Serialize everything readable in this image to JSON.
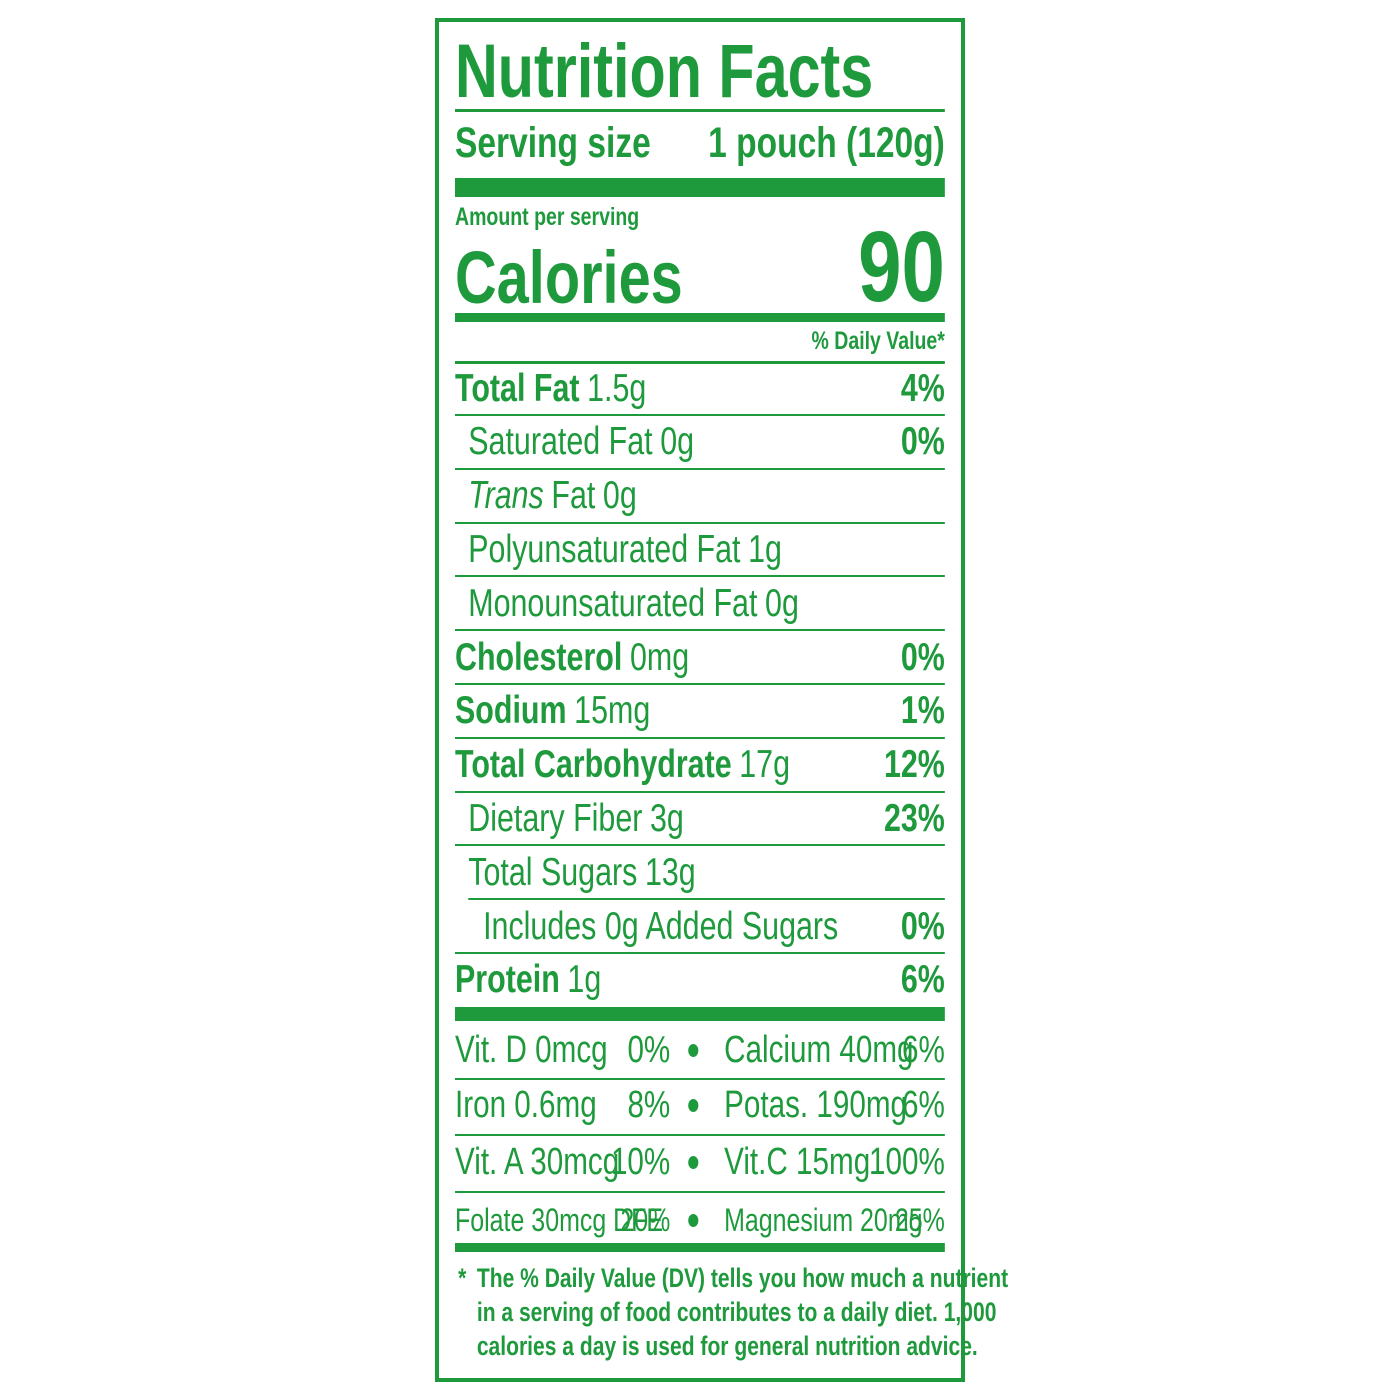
{
  "title": "Nutrition Facts",
  "serving": {
    "label": "Serving size",
    "value": "1 pouch (120g)"
  },
  "amount_per_serving": "Amount per serving",
  "calories": {
    "label": "Calories",
    "value": 90
  },
  "dv_header": "% Daily Value*",
  "nutrients": [
    {
      "name": "Total Fat",
      "amount": "1.5g",
      "dv": "4%",
      "indent": 0
    },
    {
      "name": "Saturated Fat",
      "amount": "0g",
      "dv": "0%",
      "indent": 1
    },
    {
      "italic": "Trans",
      "name": "Fat",
      "amount": "0g",
      "indent": 1
    },
    {
      "name": "Polyunsaturated Fat",
      "amount": "1g",
      "indent": 1
    },
    {
      "name": "Monounsaturated Fat",
      "amount": "0g",
      "indent": 1
    },
    {
      "name": "Cholesterol",
      "amount": "0mg",
      "dv": "0%",
      "indent": 0
    },
    {
      "name": "Sodium",
      "amount": "15mg",
      "dv": "1%",
      "indent": 0
    },
    {
      "name": "Total Carbohydrate",
      "amount": "17g",
      "dv": "12%",
      "indent": 0
    },
    {
      "name": "Dietary Fiber",
      "amount": "3g",
      "dv": "23%",
      "indent": 1
    },
    {
      "name": "Total Sugars",
      "amount": "13g",
      "indent": 1
    },
    {
      "name": "Includes 0g Added Sugars",
      "dv": "0%",
      "indent": 2
    },
    {
      "name": "Protein",
      "amount": "1g",
      "dv": "6%",
      "indent": 0
    }
  ],
  "vitamins": [
    [
      {
        "name": "Vit. D 0mcg",
        "dv": "0%"
      },
      {
        "name": "Calcium 40mg",
        "dv": "6%"
      }
    ],
    [
      {
        "name": "Iron 0.6mg",
        "dv": "8%"
      },
      {
        "name": "Potas. 190mg",
        "dv": "6%"
      }
    ],
    [
      {
        "name": "Vit. A 30mcg",
        "dv": "10%"
      },
      {
        "name": "Vit.C 15mg",
        "dv": "100%"
      }
    ],
    [
      {
        "name": "Folate 30mcg DFE",
        "dv": "20%"
      },
      {
        "name": "Magnesium 20mg",
        "dv": "25%"
      }
    ]
  ],
  "footnote": {
    "marker": "*",
    "lines": [
      "The % Daily Value (DV) tells you how much a nutrient",
      "in a serving of food contributes to a daily diet. 1,000",
      "calories a day is used for general nutrition advice."
    ]
  }
}
